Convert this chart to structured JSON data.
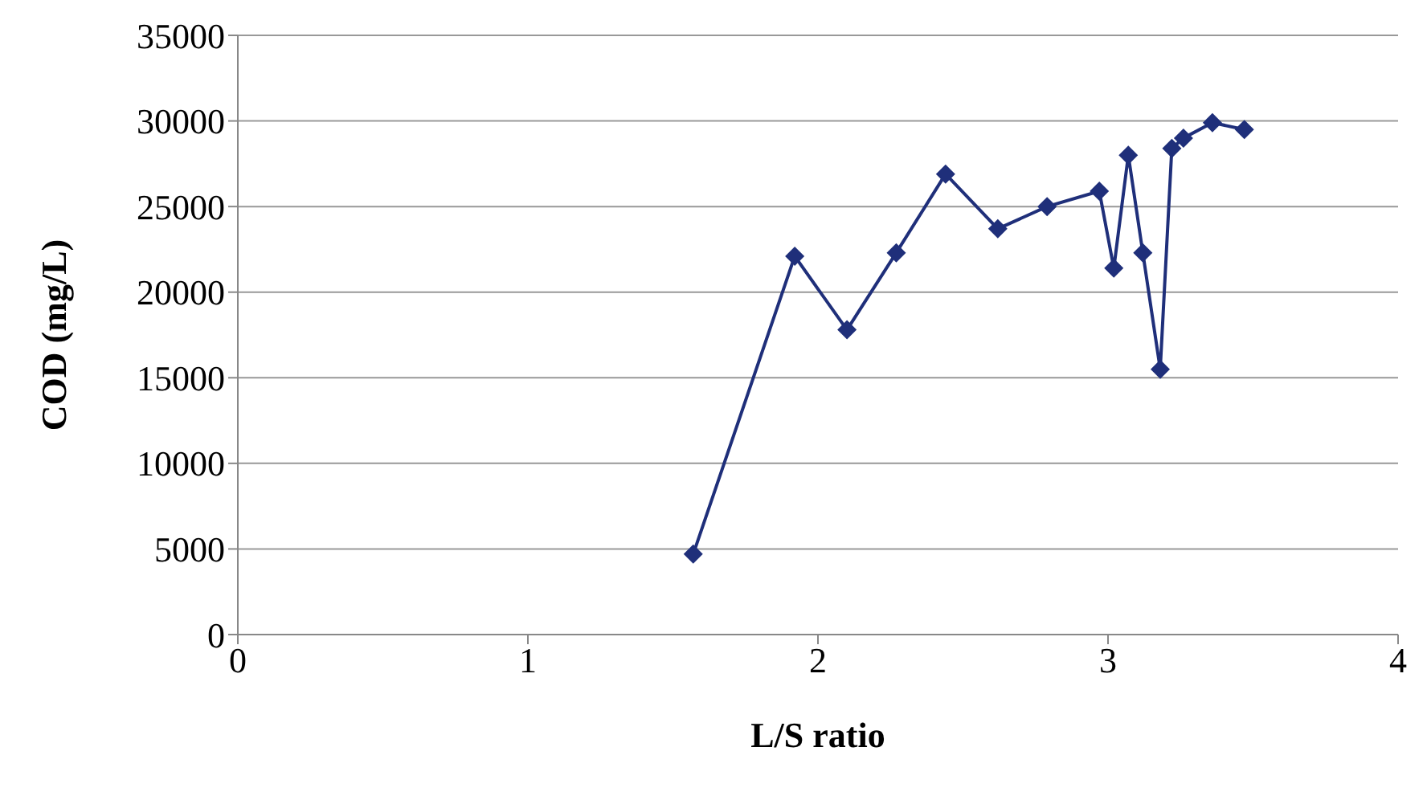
{
  "chart_data": {
    "type": "line",
    "xlabel": "L/S ratio",
    "ylabel": "COD (mg/L)",
    "xlim": [
      0,
      4
    ],
    "xticks": [
      0,
      1,
      2,
      3,
      4
    ],
    "ylim": [
      0,
      35000
    ],
    "yticks": [
      0,
      5000,
      10000,
      15000,
      20000,
      25000,
      30000,
      35000
    ],
    "grid": "y",
    "marker": "diamond",
    "line_style": "solid",
    "series": [
      {
        "color": "#1f2f7a",
        "x": [
          1.57,
          1.92,
          2.1,
          2.27,
          2.44,
          2.62,
          2.79,
          2.97,
          3.02,
          3.07,
          3.12,
          3.18,
          3.22,
          3.26,
          3.36,
          3.47
        ],
        "values": [
          4700,
          22100,
          17800,
          22300,
          26900,
          23700,
          25000,
          25900,
          21400,
          28000,
          22300,
          15500,
          28400,
          29000,
          29900,
          29500
        ]
      }
    ]
  }
}
